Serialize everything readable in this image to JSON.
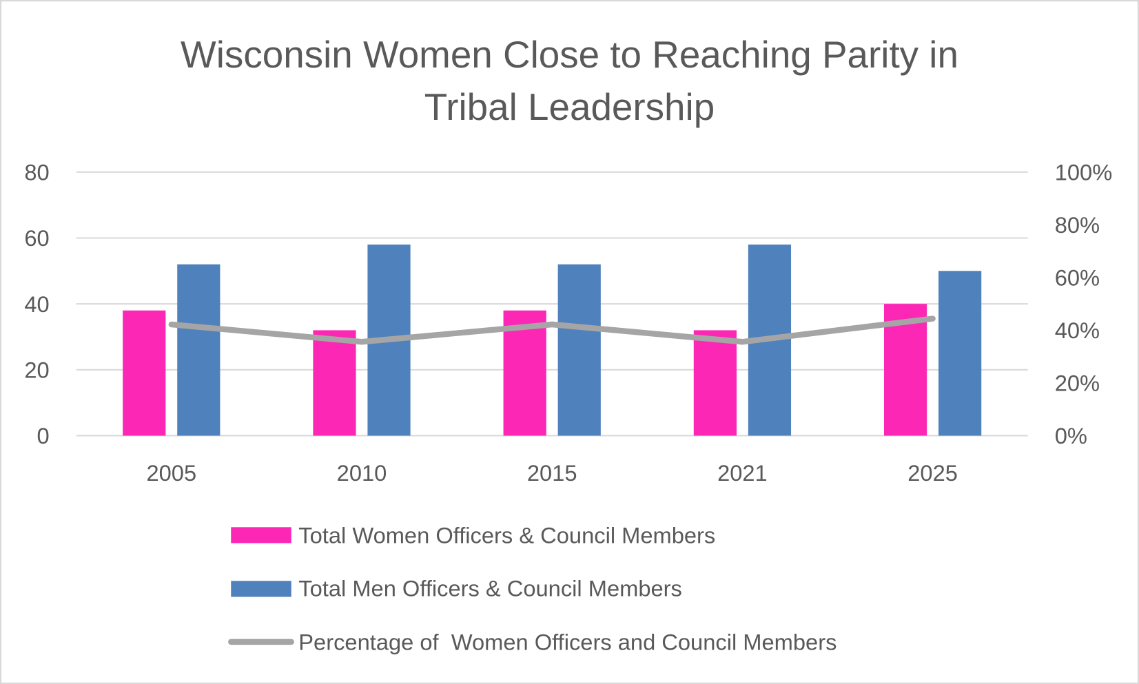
{
  "chart_data": {
    "type": "bar+line",
    "title": [
      "Wisconsin Women Close to Reaching Parity in",
      "Tribal Leadership"
    ],
    "categories": [
      "2005",
      "2010",
      "2015",
      "2021",
      "2025"
    ],
    "series": [
      {
        "name": "Total Women Officers & Council Members",
        "type": "bar",
        "axis": "left",
        "color": "#FC27B4",
        "values": [
          38,
          32,
          38,
          32,
          40
        ]
      },
      {
        "name": "Total Men Officers & Council Members",
        "type": "bar",
        "axis": "left",
        "color": "#4F81BD",
        "values": [
          52,
          58,
          52,
          58,
          50
        ]
      },
      {
        "name": "Percentage of  Women Officers and Council Members",
        "type": "line",
        "axis": "right",
        "color": "#A5A5A5",
        "values": [
          42.2,
          35.6,
          42.2,
          35.6,
          44.4
        ]
      }
    ],
    "left_axis": {
      "ylim": [
        0,
        80
      ],
      "ticks": [
        "0",
        "20",
        "40",
        "60",
        "80"
      ]
    },
    "right_axis": {
      "ylim": [
        0,
        100
      ],
      "ticks": [
        "0%",
        "20%",
        "40%",
        "60%",
        "80%",
        "100%"
      ]
    },
    "grid": true,
    "legend": "bottom"
  }
}
